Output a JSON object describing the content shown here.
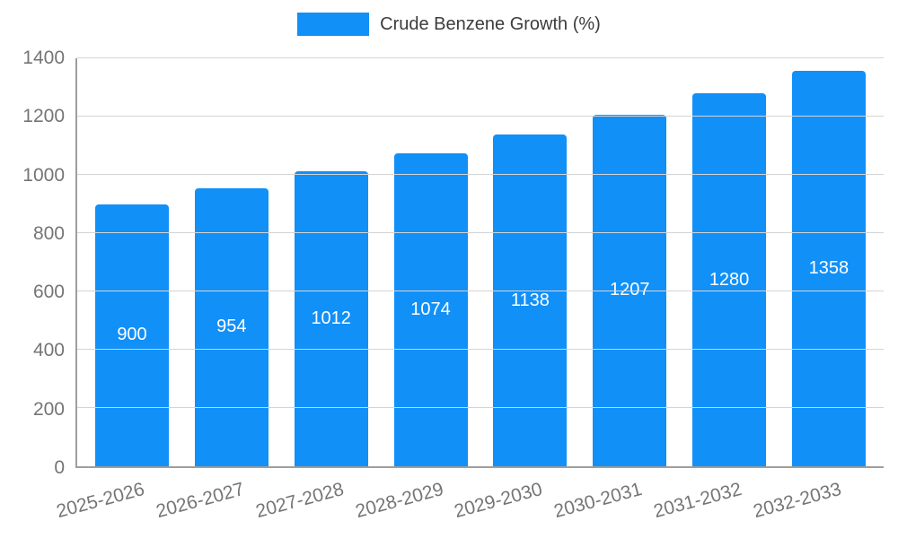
{
  "chart_data": {
    "type": "bar",
    "title": "Crude Benzene Growth (%)",
    "categories": [
      "2025-2026",
      "2026-2027",
      "2027-2028",
      "2028-2029",
      "2029-2030",
      "2030-2031",
      "2031-2032",
      "2032-2033"
    ],
    "values": [
      900,
      954,
      1012,
      1074,
      1138,
      1207,
      1280,
      1358
    ],
    "ylim": [
      0,
      1400
    ],
    "yticks": [
      0,
      200,
      400,
      600,
      800,
      1000,
      1200,
      1400
    ],
    "grid": true,
    "legend_position": "top-center",
    "bar_label_position": "inside-center",
    "colors": {
      "bar": "#1190f8",
      "bar_label": "#ffffff",
      "axis_text": "#757575",
      "gridline": "#d4d4d4",
      "axis_line": "#9e9e9e",
      "legend_text": "#3c3c3c"
    }
  }
}
